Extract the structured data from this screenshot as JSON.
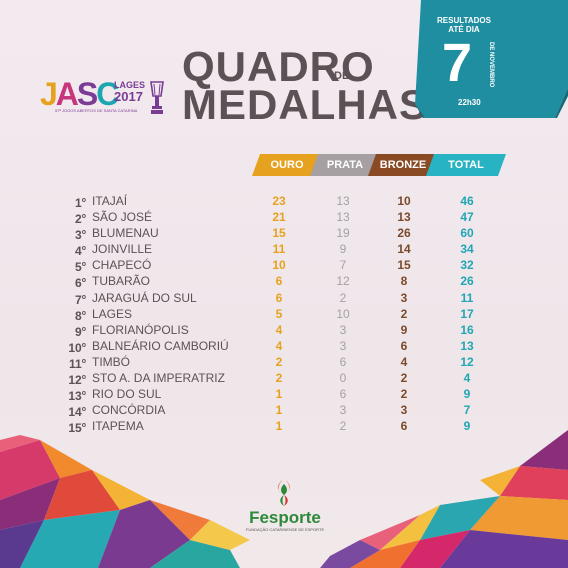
{
  "logo": {
    "letters": [
      "J",
      "A",
      "S",
      "C"
    ],
    "city": "LAGES",
    "year": "2017",
    "subtitle": "57ª JOGOS ABERTOS DE SANTA CATARINA"
  },
  "title": {
    "line1": "QUADRO",
    "connector": "DE",
    "line2": "MEDALHAS"
  },
  "banner": {
    "label": "RESULTADOS ATÉ DIA",
    "day": "7",
    "month": "DE NOVEMBRO",
    "time": "22h30"
  },
  "columns": {
    "gold": "OURO",
    "silver": "PRATA",
    "bronze": "BRONZE",
    "total": "TOTAL"
  },
  "rows": [
    {
      "pos": "1",
      "city": "ITAJAÍ",
      "gold": "23",
      "silver": "13",
      "bronze": "10",
      "total": "46"
    },
    {
      "pos": "2",
      "city": "SÃO JOSÉ",
      "gold": "21",
      "silver": "13",
      "bronze": "13",
      "total": "47"
    },
    {
      "pos": "3",
      "city": "BLUMENAU",
      "gold": "15",
      "silver": "19",
      "bronze": "26",
      "total": "60"
    },
    {
      "pos": "4",
      "city": "JOINVILLE",
      "gold": "11",
      "silver": "9",
      "bronze": "14",
      "total": "34"
    },
    {
      "pos": "5",
      "city": "CHAPECÓ",
      "gold": "10",
      "silver": "7",
      "bronze": "15",
      "total": "32"
    },
    {
      "pos": "6",
      "city": "TUBARÃO",
      "gold": "6",
      "silver": "12",
      "bronze": "8",
      "total": "26"
    },
    {
      "pos": "7",
      "city": "JARAGUÁ DO SUL",
      "gold": "6",
      "silver": "2",
      "bronze": "3",
      "total": "11"
    },
    {
      "pos": "8",
      "city": "LAGES",
      "gold": "5",
      "silver": "10",
      "bronze": "2",
      "total": "17"
    },
    {
      "pos": "9",
      "city": "FLORIANÓPOLIS",
      "gold": "4",
      "silver": "3",
      "bronze": "9",
      "total": "16"
    },
    {
      "pos": "10",
      "city": "BALNEÁRIO CAMBORIÚ",
      "gold": "4",
      "silver": "3",
      "bronze": "6",
      "total": "13"
    },
    {
      "pos": "11",
      "city": "TIMBÓ",
      "gold": "2",
      "silver": "6",
      "bronze": "4",
      "total": "12"
    },
    {
      "pos": "12",
      "city": "STO A. DA IMPERATRIZ",
      "gold": "2",
      "silver": "0",
      "bronze": "2",
      "total": "4"
    },
    {
      "pos": "13",
      "city": "RIO DO SUL",
      "gold": "1",
      "silver": "6",
      "bronze": "2",
      "total": "9"
    },
    {
      "pos": "14",
      "city": "CONCÓRDIA",
      "gold": "1",
      "silver": "3",
      "bronze": "3",
      "total": "7"
    },
    {
      "pos": "15",
      "city": "ITAPEMA",
      "gold": "1",
      "silver": "2",
      "bronze": "6",
      "total": "9"
    }
  ],
  "footer": {
    "name": "Fesporte",
    "subtitle": "FUNDAÇÃO CATARINENSE DE ESPORTE"
  },
  "colors": {
    "gold": "#e6a21f",
    "silver": "#a6a0a3",
    "bronze": "#7a4a2a",
    "total": "#20a6b4",
    "banner": "#1f8ea0",
    "text": "#5b5256"
  }
}
